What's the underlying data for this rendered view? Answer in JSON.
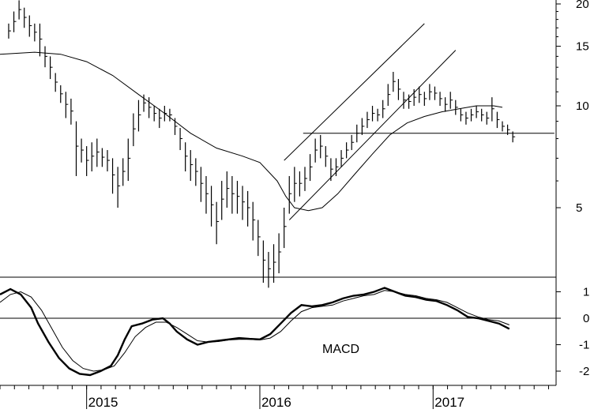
{
  "chart_data": [
    {
      "type": "ohlc-bar",
      "panel": "price",
      "scale": "log",
      "ylim": [
        2.7,
        24
      ],
      "yticks": [
        5,
        10,
        15,
        20
      ],
      "grid": false,
      "x_years": [
        "2015",
        "2016",
        "2017"
      ],
      "series": [
        {
          "role": "price-bars",
          "points": [
            [
              2014.55,
              17.5,
              15.8
            ],
            [
              2014.58,
              19.0,
              16.5
            ],
            [
              2014.61,
              20.5,
              18.0
            ],
            [
              2014.64,
              19.5,
              17.0
            ],
            [
              2014.67,
              18.5,
              16.0
            ],
            [
              2014.7,
              17.5,
              15.5
            ],
            [
              2014.73,
              17.5,
              14.0
            ],
            [
              2014.76,
              15.0,
              13.0
            ],
            [
              2014.79,
              14.0,
              12.0
            ],
            [
              2014.82,
              12.5,
              11.0
            ],
            [
              2014.85,
              11.5,
              10.2
            ],
            [
              2014.88,
              11.0,
              9.2
            ],
            [
              2014.91,
              10.5,
              8.8
            ],
            [
              2014.94,
              9.0,
              6.2
            ],
            [
              2014.97,
              8.0,
              6.8
            ],
            [
              2015.0,
              7.6,
              6.2
            ],
            [
              2015.03,
              7.8,
              6.4
            ],
            [
              2015.06,
              8.0,
              6.6
            ],
            [
              2015.09,
              7.5,
              6.6
            ],
            [
              2015.12,
              7.4,
              6.4
            ],
            [
              2015.15,
              7.0,
              5.5
            ],
            [
              2015.18,
              6.6,
              5.0
            ],
            [
              2015.21,
              7.0,
              5.8
            ],
            [
              2015.24,
              8.0,
              6.0
            ],
            [
              2015.27,
              9.5,
              7.6
            ],
            [
              2015.3,
              10.4,
              8.4
            ],
            [
              2015.33,
              10.8,
              9.6
            ],
            [
              2015.36,
              10.6,
              9.2
            ],
            [
              2015.39,
              10.0,
              9.0
            ],
            [
              2015.42,
              9.8,
              8.6
            ],
            [
              2015.45,
              10.0,
              9.0
            ],
            [
              2015.48,
              9.8,
              9.0
            ],
            [
              2015.51,
              9.2,
              8.2
            ],
            [
              2015.54,
              8.6,
              7.4
            ],
            [
              2015.57,
              7.8,
              6.4
            ],
            [
              2015.6,
              7.4,
              6.0
            ],
            [
              2015.63,
              7.0,
              5.8
            ],
            [
              2015.66,
              6.6,
              5.2
            ],
            [
              2015.69,
              6.2,
              4.8
            ],
            [
              2015.72,
              5.8,
              4.4
            ],
            [
              2015.75,
              5.2,
              3.9
            ],
            [
              2015.78,
              6.0,
              4.6
            ],
            [
              2015.81,
              6.4,
              5.0
            ],
            [
              2015.84,
              6.2,
              4.8
            ],
            [
              2015.87,
              6.0,
              4.8
            ],
            [
              2015.9,
              5.8,
              4.6
            ],
            [
              2015.93,
              5.6,
              4.4
            ],
            [
              2015.96,
              5.2,
              4.0
            ],
            [
              2015.99,
              4.6,
              3.6
            ],
            [
              2016.02,
              4.0,
              3.0
            ],
            [
              2016.05,
              3.7,
              2.9
            ],
            [
              2016.08,
              3.9,
              3.0
            ],
            [
              2016.11,
              4.2,
              3.2
            ],
            [
              2016.14,
              5.0,
              3.8
            ],
            [
              2016.17,
              6.2,
              4.8
            ],
            [
              2016.2,
              6.6,
              5.2
            ],
            [
              2016.23,
              6.4,
              5.4
            ],
            [
              2016.26,
              6.6,
              5.6
            ],
            [
              2016.29,
              7.2,
              6.0
            ],
            [
              2016.32,
              8.0,
              6.8
            ],
            [
              2016.35,
              8.2,
              7.0
            ],
            [
              2016.38,
              7.6,
              6.6
            ],
            [
              2016.41,
              7.0,
              6.0
            ],
            [
              2016.44,
              7.0,
              6.2
            ],
            [
              2016.47,
              7.4,
              6.6
            ],
            [
              2016.5,
              7.8,
              7.0
            ],
            [
              2016.53,
              8.2,
              7.4
            ],
            [
              2016.56,
              8.8,
              7.8
            ],
            [
              2016.59,
              9.2,
              8.2
            ],
            [
              2016.62,
              9.6,
              8.6
            ],
            [
              2016.65,
              10.0,
              9.0
            ],
            [
              2016.68,
              9.8,
              9.0
            ],
            [
              2016.71,
              10.4,
              9.2
            ],
            [
              2016.74,
              11.6,
              10.0
            ],
            [
              2016.77,
              12.6,
              11.0
            ],
            [
              2016.8,
              12.0,
              10.4
            ],
            [
              2016.83,
              11.0,
              9.8
            ],
            [
              2016.86,
              10.8,
              9.8
            ],
            [
              2016.89,
              11.2,
              10.0
            ],
            [
              2016.92,
              11.4,
              10.2
            ],
            [
              2016.95,
              11.0,
              10.0
            ],
            [
              2016.98,
              11.6,
              10.4
            ],
            [
              2017.01,
              11.4,
              10.4
            ],
            [
              2017.04,
              11.0,
              10.0
            ],
            [
              2017.07,
              10.6,
              9.6
            ],
            [
              2017.1,
              11.0,
              9.8
            ],
            [
              2017.13,
              10.4,
              9.4
            ],
            [
              2017.16,
              9.8,
              9.0
            ],
            [
              2017.19,
              9.6,
              8.8
            ],
            [
              2017.22,
              9.8,
              9.0
            ],
            [
              2017.25,
              10.0,
              9.2
            ],
            [
              2017.28,
              9.8,
              9.0
            ],
            [
              2017.31,
              9.6,
              8.8
            ],
            [
              2017.34,
              10.6,
              9.0
            ],
            [
              2017.37,
              9.6,
              8.6
            ],
            [
              2017.4,
              9.0,
              8.4
            ],
            [
              2017.43,
              8.8,
              8.2
            ],
            [
              2017.46,
              8.4,
              7.8
            ]
          ]
        },
        {
          "role": "moving-average",
          "points": [
            [
              2014.5,
              14.2
            ],
            [
              2014.7,
              14.4
            ],
            [
              2014.85,
              14.2
            ],
            [
              2015.0,
              13.5
            ],
            [
              2015.15,
              12.3
            ],
            [
              2015.3,
              10.8
            ],
            [
              2015.45,
              9.5
            ],
            [
              2015.6,
              8.3
            ],
            [
              2015.75,
              7.5
            ],
            [
              2015.9,
              7.1
            ],
            [
              2016.0,
              6.8
            ],
            [
              2016.1,
              6.0
            ],
            [
              2016.15,
              5.4
            ],
            [
              2016.2,
              5.0
            ],
            [
              2016.28,
              4.9
            ],
            [
              2016.36,
              5.0
            ],
            [
              2016.45,
              5.5
            ],
            [
              2016.55,
              6.3
            ],
            [
              2016.65,
              7.2
            ],
            [
              2016.75,
              8.2
            ],
            [
              2016.85,
              8.9
            ],
            [
              2016.95,
              9.3
            ],
            [
              2017.05,
              9.6
            ],
            [
              2017.15,
              9.8
            ],
            [
              2017.25,
              10.0
            ],
            [
              2017.35,
              10.0
            ],
            [
              2017.4,
              9.9
            ]
          ]
        },
        {
          "role": "trendline-channel-upper",
          "points": [
            [
              2016.14,
              6.9
            ],
            [
              2016.95,
              17.5
            ]
          ]
        },
        {
          "role": "trendline-channel-lower",
          "points": [
            [
              2016.17,
              4.6
            ],
            [
              2017.13,
              14.6
            ]
          ]
        },
        {
          "role": "horizontal-support",
          "points": [
            [
              2016.25,
              8.3
            ],
            [
              2017.7,
              8.3
            ]
          ]
        }
      ]
    },
    {
      "type": "line",
      "panel": "indicator",
      "ylim": [
        -2.5,
        1.5
      ],
      "yticks": [
        1,
        0,
        -1,
        -2
      ],
      "zero_line": true,
      "annotation": "MACD",
      "series": [
        {
          "role": "macd",
          "points": [
            [
              2014.5,
              0.9
            ],
            [
              2014.56,
              1.1
            ],
            [
              2014.62,
              0.9
            ],
            [
              2014.68,
              0.4
            ],
            [
              2014.72,
              -0.2
            ],
            [
              2014.78,
              -0.9
            ],
            [
              2014.84,
              -1.5
            ],
            [
              2014.9,
              -1.9
            ],
            [
              2014.96,
              -2.1
            ],
            [
              2015.02,
              -2.15
            ],
            [
              2015.08,
              -2.0
            ],
            [
              2015.14,
              -1.8
            ],
            [
              2015.18,
              -1.4
            ],
            [
              2015.22,
              -0.8
            ],
            [
              2015.26,
              -0.3
            ],
            [
              2015.32,
              -0.2
            ],
            [
              2015.38,
              -0.05
            ],
            [
              2015.44,
              0.0
            ],
            [
              2015.48,
              -0.2
            ],
            [
              2015.52,
              -0.5
            ],
            [
              2015.58,
              -0.8
            ],
            [
              2015.64,
              -1.0
            ],
            [
              2015.7,
              -0.9
            ],
            [
              2015.76,
              -0.85
            ],
            [
              2015.82,
              -0.8
            ],
            [
              2015.88,
              -0.75
            ],
            [
              2015.94,
              -0.78
            ],
            [
              2016.0,
              -0.8
            ],
            [
              2016.06,
              -0.6
            ],
            [
              2016.12,
              -0.2
            ],
            [
              2016.18,
              0.2
            ],
            [
              2016.24,
              0.5
            ],
            [
              2016.3,
              0.45
            ],
            [
              2016.36,
              0.5
            ],
            [
              2016.42,
              0.6
            ],
            [
              2016.48,
              0.75
            ],
            [
              2016.54,
              0.85
            ],
            [
              2016.6,
              0.9
            ],
            [
              2016.66,
              1.0
            ],
            [
              2016.72,
              1.15
            ],
            [
              2016.78,
              1.0
            ],
            [
              2016.84,
              0.85
            ],
            [
              2016.9,
              0.8
            ],
            [
              2016.96,
              0.7
            ],
            [
              2017.02,
              0.65
            ],
            [
              2017.08,
              0.5
            ],
            [
              2017.14,
              0.3
            ],
            [
              2017.2,
              0.05
            ],
            [
              2017.26,
              0.0
            ],
            [
              2017.32,
              -0.1
            ],
            [
              2017.38,
              -0.2
            ],
            [
              2017.44,
              -0.4
            ]
          ]
        },
        {
          "role": "signal",
          "points": [
            [
              2014.5,
              0.6
            ],
            [
              2014.56,
              0.9
            ],
            [
              2014.62,
              1.0
            ],
            [
              2014.68,
              0.8
            ],
            [
              2014.74,
              0.3
            ],
            [
              2014.8,
              -0.4
            ],
            [
              2014.86,
              -1.1
            ],
            [
              2014.92,
              -1.6
            ],
            [
              2014.98,
              -1.9
            ],
            [
              2015.04,
              -2.0
            ],
            [
              2015.1,
              -1.95
            ],
            [
              2015.16,
              -1.8
            ],
            [
              2015.22,
              -1.3
            ],
            [
              2015.28,
              -0.7
            ],
            [
              2015.34,
              -0.35
            ],
            [
              2015.4,
              -0.15
            ],
            [
              2015.46,
              -0.15
            ],
            [
              2015.52,
              -0.35
            ],
            [
              2015.58,
              -0.6
            ],
            [
              2015.64,
              -0.85
            ],
            [
              2015.7,
              -0.9
            ],
            [
              2015.76,
              -0.88
            ],
            [
              2015.82,
              -0.82
            ],
            [
              2015.88,
              -0.8
            ],
            [
              2015.94,
              -0.8
            ],
            [
              2016.0,
              -0.82
            ],
            [
              2016.06,
              -0.75
            ],
            [
              2016.12,
              -0.5
            ],
            [
              2016.18,
              -0.1
            ],
            [
              2016.24,
              0.25
            ],
            [
              2016.3,
              0.4
            ],
            [
              2016.36,
              0.45
            ],
            [
              2016.42,
              0.5
            ],
            [
              2016.48,
              0.65
            ],
            [
              2016.54,
              0.75
            ],
            [
              2016.6,
              0.85
            ],
            [
              2016.66,
              0.9
            ],
            [
              2016.72,
              1.05
            ],
            [
              2016.78,
              1.0
            ],
            [
              2016.84,
              0.9
            ],
            [
              2016.9,
              0.85
            ],
            [
              2016.96,
              0.75
            ],
            [
              2017.02,
              0.7
            ],
            [
              2017.08,
              0.6
            ],
            [
              2017.14,
              0.4
            ],
            [
              2017.2,
              0.2
            ],
            [
              2017.26,
              0.05
            ],
            [
              2017.32,
              -0.05
            ],
            [
              2017.38,
              -0.1
            ],
            [
              2017.44,
              -0.25
            ]
          ]
        }
      ]
    }
  ]
}
